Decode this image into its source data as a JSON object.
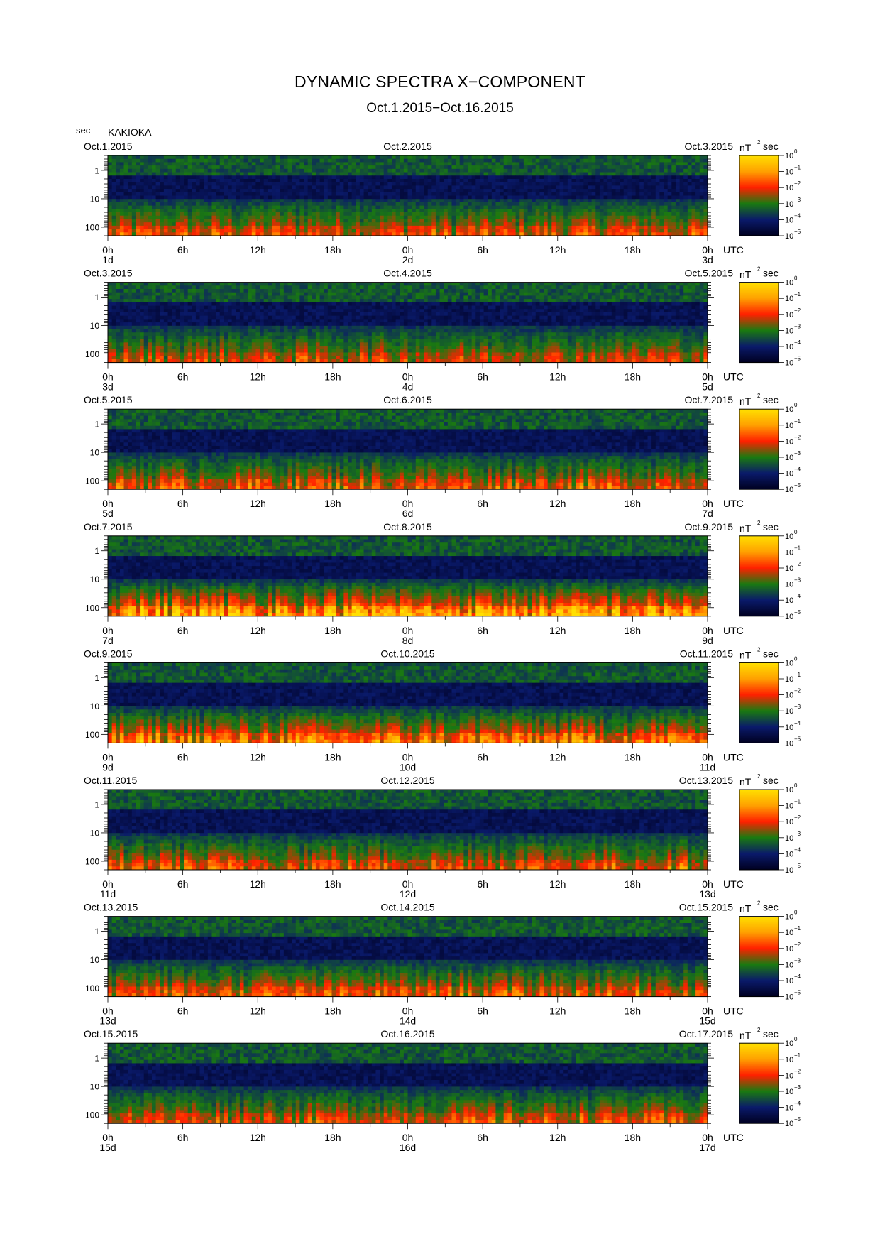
{
  "title": "DYNAMIC SPECTRA X−COMPONENT",
  "subtitle": "Oct.1.2015−Oct.16.2015",
  "y_unit": "sec",
  "station": "KAKIOKA",
  "colorbar": {
    "unit_base": "nT",
    "unit_exp": "2",
    "unit_suffix": "sec",
    "scale": "log",
    "colors": [
      "#000020",
      "#0a1a6a",
      "#1a7a10",
      "#ff2000",
      "#ffa000",
      "#ffe000"
    ],
    "ticks": [
      {
        "base": "10",
        "exp": "0"
      },
      {
        "base": "10",
        "exp": "−1"
      },
      {
        "base": "10",
        "exp": "−2"
      },
      {
        "base": "10",
        "exp": "−3"
      },
      {
        "base": "10",
        "exp": "−4"
      },
      {
        "base": "10",
        "exp": "−5"
      }
    ]
  },
  "chart_data": {
    "type": "heatmap",
    "y_axis": {
      "scale": "log",
      "unit": "sec",
      "tick_labels": [
        "1",
        "10",
        "100"
      ],
      "range_sec": [
        0.3,
        200
      ],
      "inverted": true
    },
    "x_axis": {
      "unit": "UTC",
      "tick_labels": [
        "0h",
        "6h",
        "12h",
        "18h",
        "0h",
        "6h",
        "12h",
        "18h",
        "0h"
      ],
      "range_hours": [
        0,
        48
      ]
    },
    "color_range_nT2sec": [
      1e-05,
      1
    ],
    "panels": [
      {
        "date_left": "Oct.1.2015",
        "date_mid": "Oct.2.2015",
        "date_right": "Oct.3.2015",
        "day_labels": [
          "1d",
          "2d",
          "3d"
        ],
        "activity": 0.35
      },
      {
        "date_left": "Oct.3.2015",
        "date_mid": "Oct.4.2015",
        "date_right": "Oct.5.2015",
        "day_labels": [
          "3d",
          "4d",
          "5d"
        ],
        "activity": 0.3
      },
      {
        "date_left": "Oct.5.2015",
        "date_mid": "Oct.6.2015",
        "date_right": "Oct.7.2015",
        "day_labels": [
          "5d",
          "6d",
          "7d"
        ],
        "activity": 0.4
      },
      {
        "date_left": "Oct.7.2015",
        "date_mid": "Oct.8.2015",
        "date_right": "Oct.9.2015",
        "day_labels": [
          "7d",
          "8d",
          "9d"
        ],
        "activity": 0.8
      },
      {
        "date_left": "Oct.9.2015",
        "date_mid": "Oct.10.2015",
        "date_right": "Oct.11.2015",
        "day_labels": [
          "9d",
          "10d",
          "11d"
        ],
        "activity": 0.55
      },
      {
        "date_left": "Oct.11.2015",
        "date_mid": "Oct.12.2015",
        "date_right": "Oct.13.2015",
        "day_labels": [
          "11d",
          "12d",
          "13d"
        ],
        "activity": 0.4
      },
      {
        "date_left": "Oct.13.2015",
        "date_mid": "Oct.14.2015",
        "date_right": "Oct.15.2015",
        "day_labels": [
          "13d",
          "14d",
          "15d"
        ],
        "activity": 0.4
      },
      {
        "date_left": "Oct.15.2015",
        "date_mid": "Oct.16.2015",
        "date_right": "Oct.17.2015",
        "day_labels": [
          "15d",
          "16d",
          "17d"
        ],
        "activity": 0.35
      }
    ]
  }
}
